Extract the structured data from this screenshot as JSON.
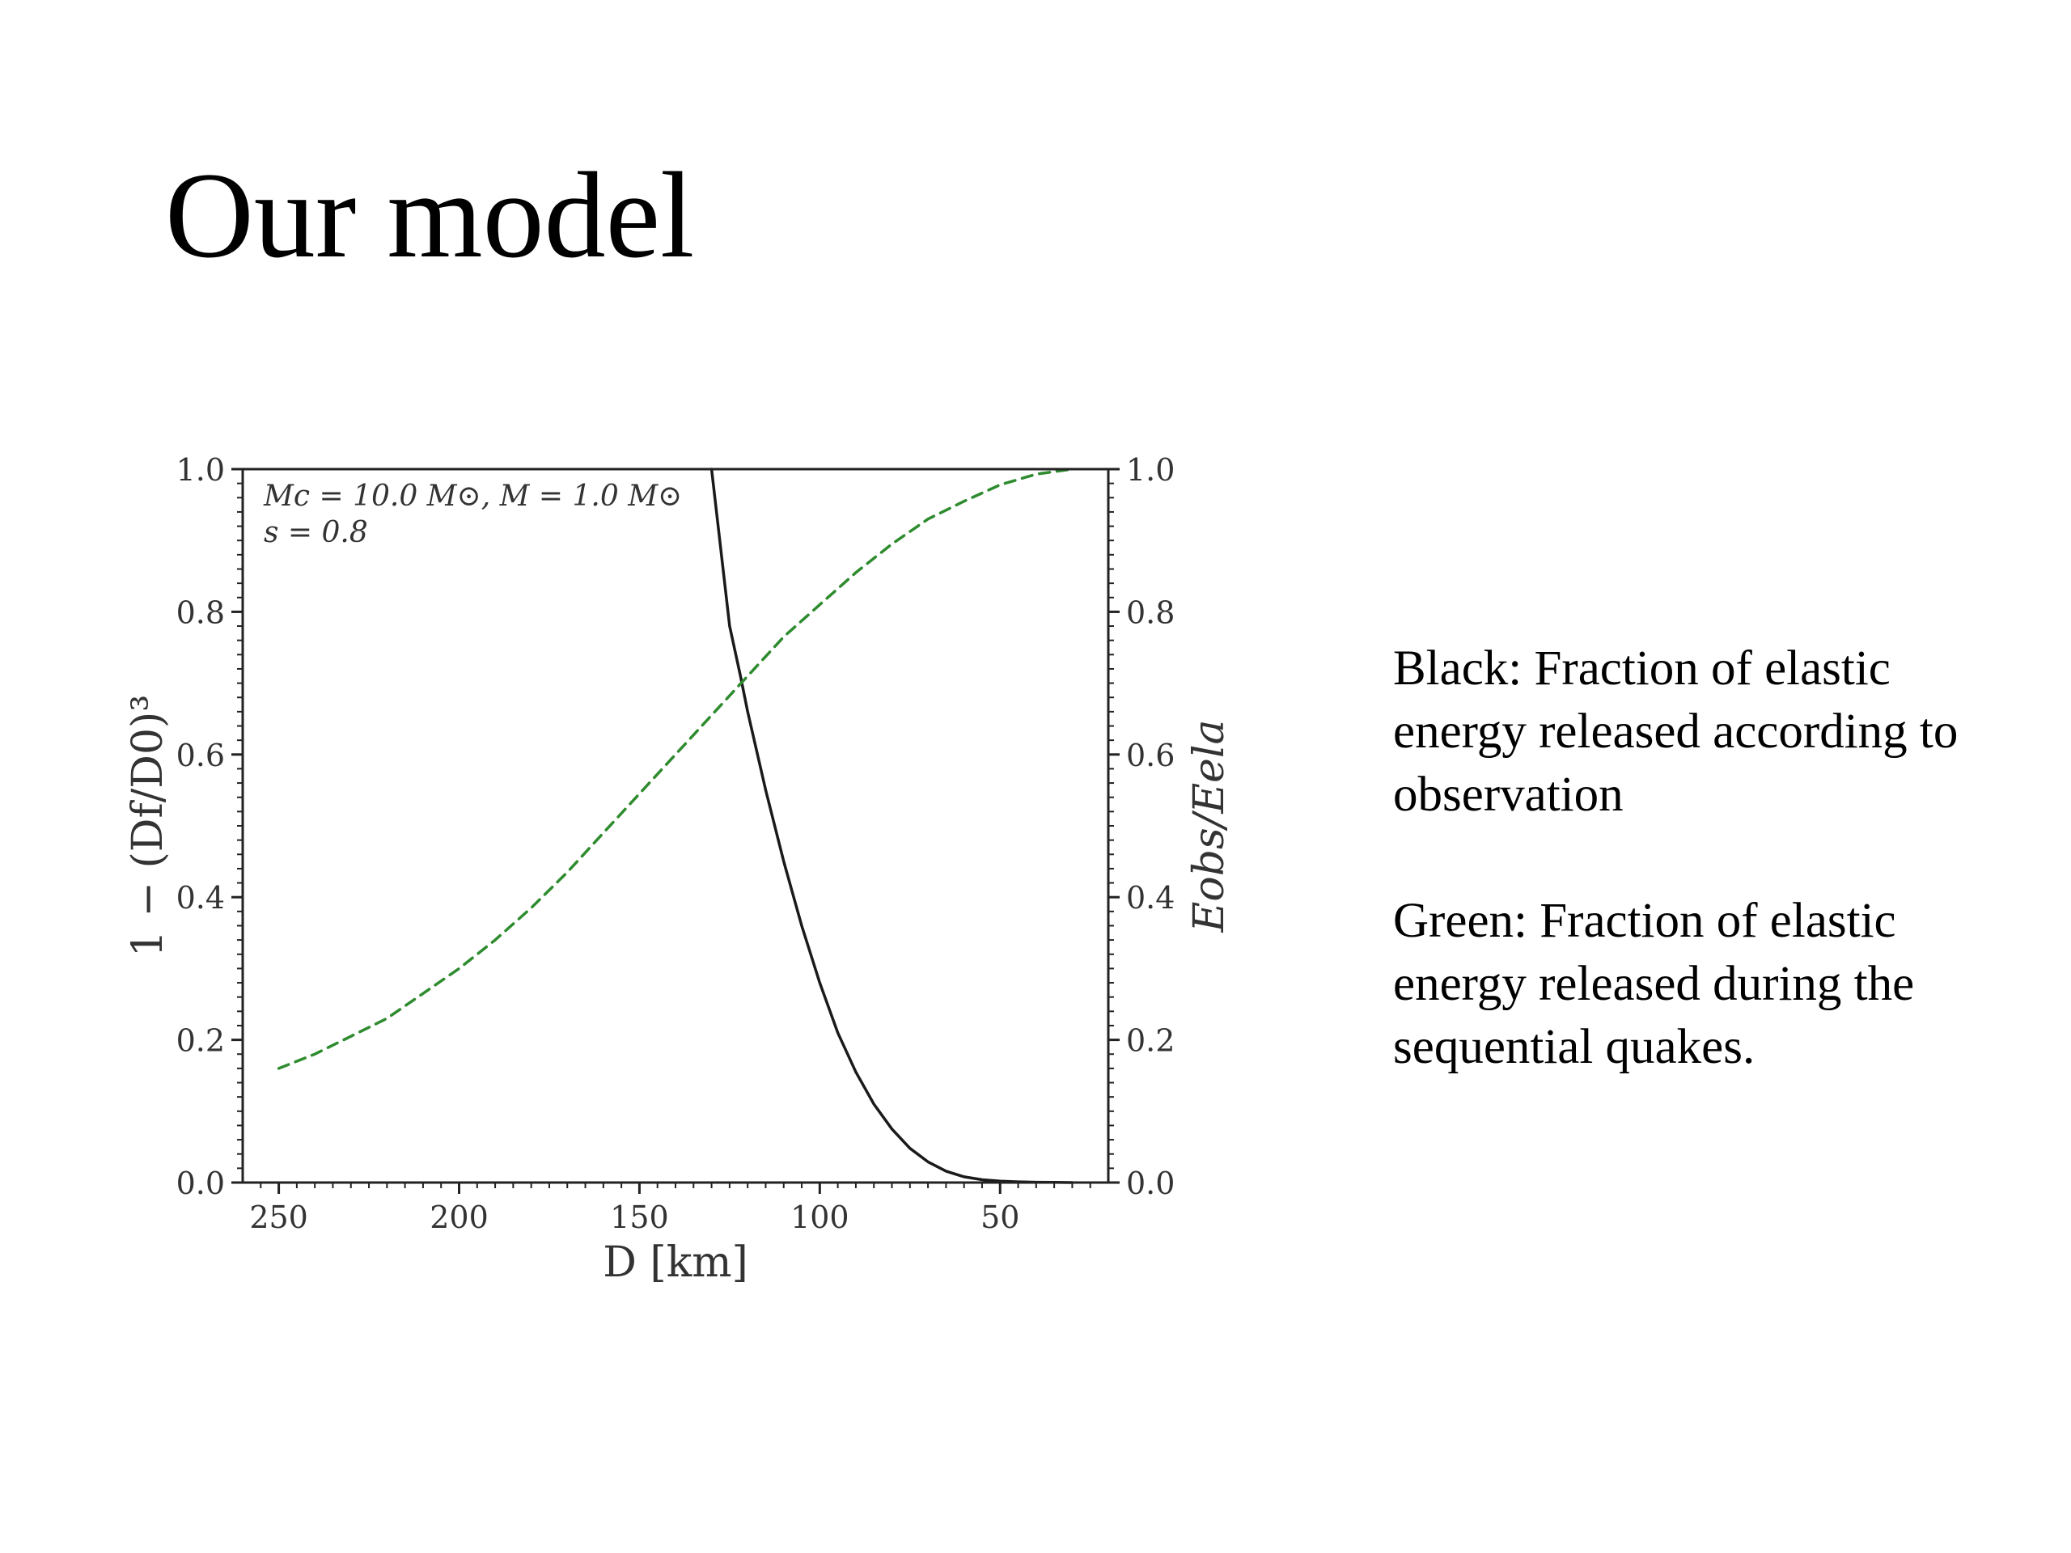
{
  "slide": {
    "title": "Our model",
    "legend": {
      "black": "Black: Fraction of elastic energy released according to observation",
      "green": "Green: Fraction of elastic energy released during the sequential quakes."
    }
  },
  "chart_data": {
    "type": "line",
    "annotation": [
      "Mc = 10.0 M⊙, M = 1.0 M⊙",
      "s = 0.8"
    ],
    "xlabel": "D [km]",
    "ylabel_left": "1 − (Df/D0)³",
    "ylabel_right": "Eobs/Eela",
    "xlim": [
      260,
      20
    ],
    "ylim": [
      0,
      1
    ],
    "x_ticks": [
      250,
      200,
      150,
      100,
      50
    ],
    "y_ticks": [
      0.0,
      0.2,
      0.4,
      0.6,
      0.8,
      1.0
    ],
    "y_tick_labels": [
      "0.0",
      "0.2",
      "0.4",
      "0.6",
      "0.8",
      "1.0"
    ],
    "grid": false,
    "series": [
      {
        "color": "#1a1a1a",
        "dash": "solid",
        "axis": "left",
        "x": [
          130,
          125,
          122,
          120,
          115,
          110,
          105,
          100,
          95,
          90,
          85,
          80,
          75,
          70,
          65,
          60,
          55,
          50,
          45,
          40,
          35,
          30
        ],
        "y": [
          1.0,
          0.78,
          0.71,
          0.66,
          0.55,
          0.45,
          0.36,
          0.28,
          0.21,
          0.155,
          0.11,
          0.075,
          0.048,
          0.029,
          0.016,
          0.008,
          0.004,
          0.002,
          0.001,
          0.0005,
          0.0002,
          0.0
        ]
      },
      {
        "color": "#2e8b2e",
        "dash": "dashed",
        "axis": "left",
        "x": [
          250,
          240,
          230,
          220,
          210,
          200,
          190,
          180,
          170,
          160,
          150,
          140,
          130,
          120,
          110,
          100,
          90,
          80,
          70,
          60,
          50,
          40,
          30
        ],
        "y": [
          0.16,
          0.18,
          0.205,
          0.23,
          0.265,
          0.3,
          0.34,
          0.385,
          0.435,
          0.49,
          0.545,
          0.6,
          0.655,
          0.71,
          0.765,
          0.81,
          0.855,
          0.895,
          0.93,
          0.955,
          0.978,
          0.993,
          1.0
        ]
      }
    ]
  }
}
